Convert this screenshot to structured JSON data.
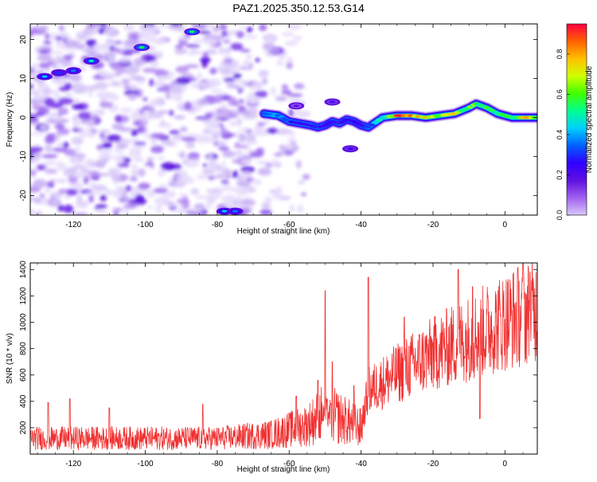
{
  "title": "PAZ1.2025.350.12.53.G14",
  "colors": {
    "snr_line": "#f03030",
    "ridge": "#e81850",
    "background": "#ffffff"
  },
  "colorbar_gradient": [
    "#d8c8f8",
    "#a060f0",
    "#6010e0",
    "#3000ff",
    "#0060ff",
    "#00d0ff",
    "#00ff90",
    "#40ff00",
    "#d0ff00",
    "#ffc000",
    "#ff6000",
    "#ff0040"
  ],
  "chart_data": [
    {
      "type": "heatmap",
      "xlabel": "Height of straight line (km)",
      "ylabel": "Frequency (Hz)",
      "xlim": [
        -132,
        9
      ],
      "ylim": [
        -25,
        24
      ],
      "xticks": [
        -120,
        -100,
        -80,
        -60,
        -40,
        -20,
        0
      ],
      "yticks": [
        -20,
        -10,
        0,
        10,
        20
      ],
      "colorbar": {
        "label": "Normalized spectral amplitude",
        "range": [
          0,
          0.95
        ],
        "ticks": [
          "0.0",
          "0.2",
          "0.4",
          "0.6",
          "0.8"
        ]
      },
      "ridge": {
        "x": [
          -67,
          -63,
          -60,
          -57,
          -54,
          -52,
          -50,
          -48,
          -46,
          -44,
          -42,
          -40,
          -38,
          -34,
          -30,
          -26,
          -22,
          -18,
          -14,
          -10,
          -8,
          -5,
          -2,
          2,
          6,
          9
        ],
        "y": [
          1,
          0.5,
          -1,
          -1.5,
          -2,
          -2.5,
          -2,
          -1,
          -1.5,
          -0.5,
          -1,
          -2,
          -2.5,
          0,
          0.5,
          0.5,
          0,
          0.5,
          1,
          2.5,
          3.5,
          2.5,
          1,
          0,
          0,
          0
        ],
        "amplitude": [
          0.35,
          0.4,
          0.35,
          0.3,
          0.3,
          0.3,
          0.3,
          0.28,
          0.3,
          0.3,
          0.25,
          0.25,
          0.35,
          0.55,
          0.9,
          0.95,
          0.85,
          0.75,
          0.75,
          0.7,
          0.65,
          0.6,
          0.6,
          0.65,
          0.8,
          0.7
        ]
      }
    },
    {
      "type": "line",
      "xlabel": "Height of straight line (km)",
      "ylabel": "SNR (10 * v/v)",
      "xlim": [
        -132,
        9
      ],
      "ylim": [
        0,
        1450
      ],
      "xticks": [
        -120,
        -100,
        -80,
        -60,
        -40,
        -20,
        0
      ],
      "yticks": [
        200,
        400,
        600,
        800,
        1000,
        1200,
        1400
      ],
      "trend": {
        "x": [
          -132,
          -120,
          -100,
          -80,
          -65,
          -55,
          -50,
          -45,
          -40,
          -38,
          -30,
          -20,
          -10,
          0,
          9
        ],
        "y": [
          120,
          120,
          120,
          120,
          150,
          220,
          320,
          260,
          200,
          480,
          610,
          760,
          880,
          1010,
          1100
        ]
      },
      "spikes": [
        {
          "x": -127,
          "y": 390
        },
        {
          "x": -121,
          "y": 420
        },
        {
          "x": -110,
          "y": 350
        },
        {
          "x": -84,
          "y": 380
        },
        {
          "x": -58,
          "y": 440
        },
        {
          "x": -52,
          "y": 560
        },
        {
          "x": -50,
          "y": 1240
        },
        {
          "x": -48,
          "y": 700
        },
        {
          "x": -42,
          "y": 520
        },
        {
          "x": -38,
          "y": 1340
        },
        {
          "x": -28,
          "y": 1040
        },
        {
          "x": -13,
          "y": 1400
        },
        {
          "x": -9,
          "y": 1270
        },
        {
          "x": -7,
          "y": 270
        },
        {
          "x": 5,
          "y": 1450
        },
        {
          "x": 7,
          "y": 1380
        }
      ]
    }
  ]
}
